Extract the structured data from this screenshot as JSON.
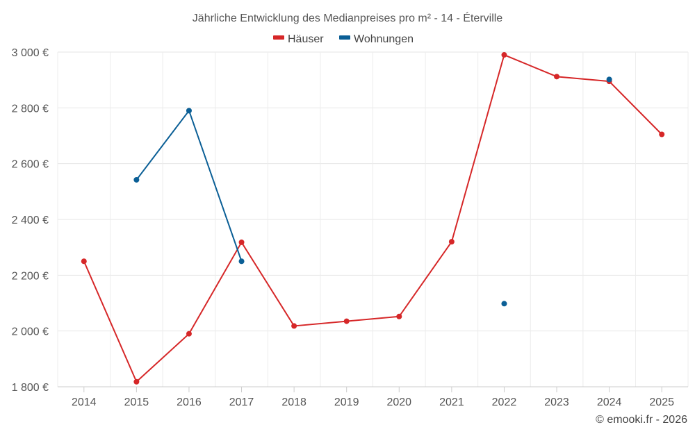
{
  "chart_data": {
    "type": "line",
    "title": "Jährliche Entwicklung des Medianpreises pro m² - 14 - Éterville",
    "categories": [
      "2014",
      "2015",
      "2016",
      "2017",
      "2018",
      "2019",
      "2020",
      "2021",
      "2022",
      "2023",
      "2024",
      "2025"
    ],
    "y_ticks": [
      "1 800 €",
      "2 000 €",
      "2 200 €",
      "2 400 €",
      "2 600 €",
      "2 800 €",
      "3 000 €"
    ],
    "y_tick_values": [
      1800,
      2000,
      2200,
      2400,
      2600,
      2800,
      3000
    ],
    "ylim": [
      1800,
      3000
    ],
    "grid": true,
    "legend_position": "top-center",
    "series": [
      {
        "name": "Häuser",
        "color": "#d62728",
        "values": [
          2250,
          1818,
          1990,
          2318,
          2018,
          2035,
          2052,
          2320,
          2990,
          2912,
          2895,
          2705
        ]
      },
      {
        "name": "Wohnungen",
        "color": "#0b5f96",
        "values": [
          null,
          2542,
          2790,
          2250,
          null,
          null,
          null,
          null,
          2098,
          null,
          2902,
          null
        ]
      }
    ],
    "credit": "© emooki.fr - 2026"
  }
}
